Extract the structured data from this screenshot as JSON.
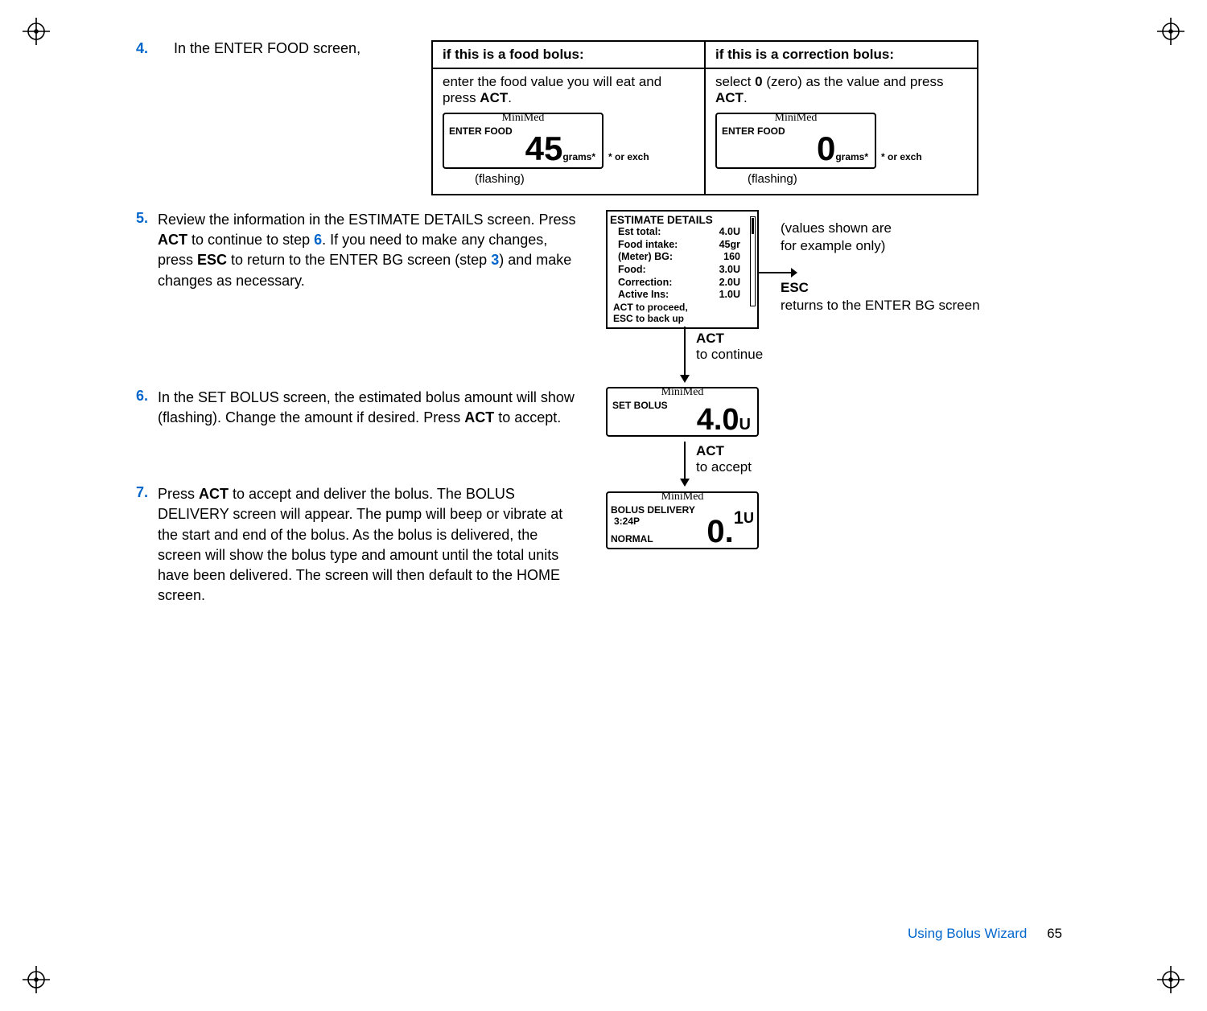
{
  "colors": {
    "accent": "#0066cc",
    "text": "#000000",
    "bg": "#ffffff"
  },
  "steps": {
    "s4": {
      "num": "4.",
      "intro": "In the ENTER FOOD screen,",
      "th_food": "if this is a food bolus:",
      "th_corr": "if this is a correction bolus:",
      "food_instr_a": "enter the food value you will eat and press ",
      "food_instr_b": "ACT",
      "food_instr_c": ".",
      "corr_instr_a": "select ",
      "corr_instr_b": "0",
      "corr_instr_c": " (zero) as the value and press ",
      "corr_instr_d": "ACT",
      "corr_instr_e": ".",
      "brand": "MiniMed",
      "screen_title": "ENTER FOOD",
      "food_value": "45",
      "corr_value": "0",
      "unit": "grams*",
      "or_exch": "* or exch",
      "flashing": "(flashing)"
    },
    "s5": {
      "num": "5.",
      "t1": "Review the information in the ESTIMATE DETAILS screen. Press ",
      "t2": "ACT",
      "t3": " to continue to step ",
      "t4": "6",
      "t5": ". If you need to make any changes, press ",
      "t6": "ESC",
      "t7": " to return to the ENTER BG screen (step ",
      "t8": "3",
      "t9": ") and make changes as necessary."
    },
    "s6": {
      "num": "6.",
      "t1": "In the SET BOLUS screen, the estimated bolus amount will show (flashing). Change the amount if desired. Press ",
      "t2": "ACT",
      "t3": " to accept."
    },
    "s7": {
      "num": "7.",
      "t1": "Press ",
      "t2": "ACT",
      "t3": " to accept and deliver the bolus. The BOLUS DELIVERY screen will appear. The pump will beep or vibrate at the start and end of the bolus. As the bolus is delivered, the screen will show the bolus type and amount until the total units have been delivered. The screen will then default to the HOME screen."
    }
  },
  "est": {
    "title": "ESTIMATE DETAILS",
    "rows": [
      {
        "k": "Est total:",
        "v": "4.0U"
      },
      {
        "k": "Food intake:",
        "v": "45gr"
      },
      {
        "k": "(Meter) BG:",
        "v": "160"
      },
      {
        "k": "Food:",
        "v": "3.0U"
      },
      {
        "k": "Correction:",
        "v": "2.0U"
      },
      {
        "k": "Active Ins:",
        "v": "1.0U"
      }
    ],
    "foot1": "ACT to proceed,",
    "foot2": "ESC to back up"
  },
  "right": {
    "note1": "(values shown are",
    "note2": " for example only)",
    "esc_bold": "ESC",
    "esc_text": "returns to the ENTER BG screen",
    "act1_bold": "ACT",
    "act1_text": "to continue",
    "act2_bold": "ACT",
    "act2_text": "to accept"
  },
  "setbolus": {
    "brand": "MiniMed",
    "title": "SET BOLUS",
    "value": "4.0",
    "unit": "U"
  },
  "delivery": {
    "brand": "MiniMed",
    "title": "BOLUS DELIVERY",
    "time": "3:24P",
    "normal": "NORMAL",
    "big": "0.",
    "sup": "1",
    "u": "U"
  },
  "footer": {
    "chapter": "Using Bolus Wizard",
    "page": "65"
  }
}
